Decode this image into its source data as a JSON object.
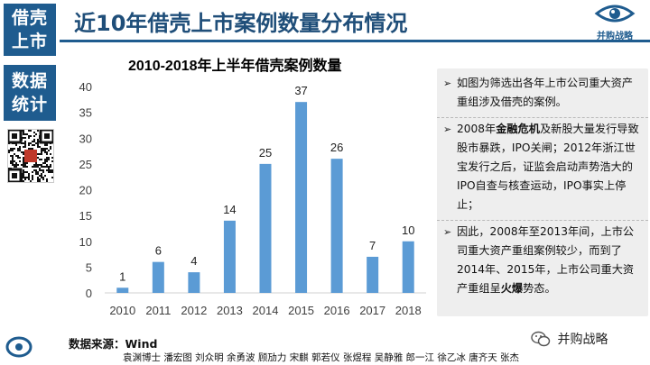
{
  "sidebar": {
    "top_label": "借壳\n上市",
    "mid_label": "数据\n统计"
  },
  "header": {
    "title": "近10年借壳上市案例数量分布情况",
    "brand_name": "并购战略"
  },
  "chart_data": {
    "type": "bar",
    "title": "2010-2018年上半年借壳案例数量",
    "categories": [
      "2010",
      "2011",
      "2012",
      "2013",
      "2014",
      "2015",
      "2016",
      "2017",
      "2018"
    ],
    "values": [
      1,
      6,
      4,
      14,
      25,
      37,
      26,
      7,
      10
    ],
    "ylim": [
      0,
      40
    ],
    "yticks": [
      "0",
      "5",
      "10",
      "15",
      "20",
      "25",
      "30",
      "35",
      "40"
    ],
    "data_labels": true,
    "grid": false,
    "bar_color": "#5b9bd5"
  },
  "notes": [
    {
      "parts": [
        {
          "text": "如图为筛选出各年上市公司重大资产重组涉及借壳的案例。",
          "bold": false
        }
      ]
    },
    {
      "parts": [
        {
          "text": "2008年",
          "bold": false
        },
        {
          "text": "金融危机",
          "bold": true
        },
        {
          "text": "及新股大量发行导致股市暴跌，IPO关闸；2012年浙江世宝发行之后，证监会启动声势浩大的IPO自查与核查运动，IPO事实上停止；",
          "bold": false
        }
      ]
    },
    {
      "parts": [
        {
          "text": "因此，2008年至2013年间，上市公司重大资产重组案例较少，而到了2014年、2015年，上市公司重大资产重组呈",
          "bold": false
        },
        {
          "text": "火爆",
          "bold": true
        },
        {
          "text": "势态。",
          "bold": false
        }
      ]
    }
  ],
  "footer": {
    "source": "数据来源：Wind",
    "authors": "袁渊博士 潘宏图 刘众明 余勇波 顾劢力 宋麒 郭若仪 张煜程 吴静雅 郎一江 徐乙冰 唐齐天 张杰",
    "wechat_label": "并购战略"
  },
  "colors": {
    "primary": "#1f5c8f",
    "title_text": "#1f4e79",
    "bar": "#5b9bd5",
    "notes_bg": "#eeeeee"
  }
}
